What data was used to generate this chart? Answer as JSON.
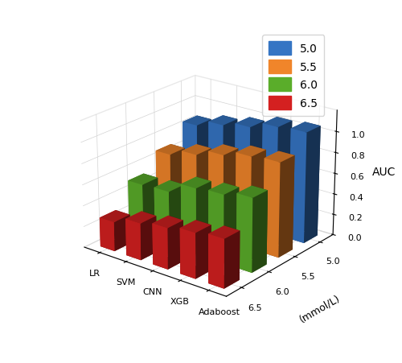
{
  "models": [
    "LR",
    "SVM",
    "CNN",
    "XGB",
    "Adaboost"
  ],
  "thresholds": [
    5.0,
    5.5,
    6.0,
    6.5
  ],
  "colors": [
    "#3575c4",
    "#f0852a",
    "#5aad2a",
    "#d42020"
  ],
  "auc_values": {
    "LR": [
      0.85,
      0.68,
      0.51,
      0.28
    ],
    "SVM": [
      0.92,
      0.75,
      0.52,
      0.35
    ],
    "CNN": [
      0.97,
      0.82,
      0.63,
      0.39
    ],
    "XGB": [
      1.04,
      0.88,
      0.65,
      0.43
    ],
    "Adaboost": [
      1.06,
      0.9,
      0.7,
      0.46
    ]
  },
  "zlabel": "AUC",
  "ylabel": "(mmol/L)",
  "zlim": [
    0.0,
    1.2
  ],
  "zticks": [
    0.0,
    0.2,
    0.4,
    0.6,
    0.8,
    1.0
  ],
  "background_color": "#ffffff",
  "legend_labels": [
    "5.0",
    "5.5",
    "6.0",
    "6.5"
  ],
  "bar_width": 0.55,
  "bar_depth": 0.55,
  "elev": 22,
  "azim": -52,
  "figsize": [
    5.0,
    4.52
  ],
  "dpi": 100
}
